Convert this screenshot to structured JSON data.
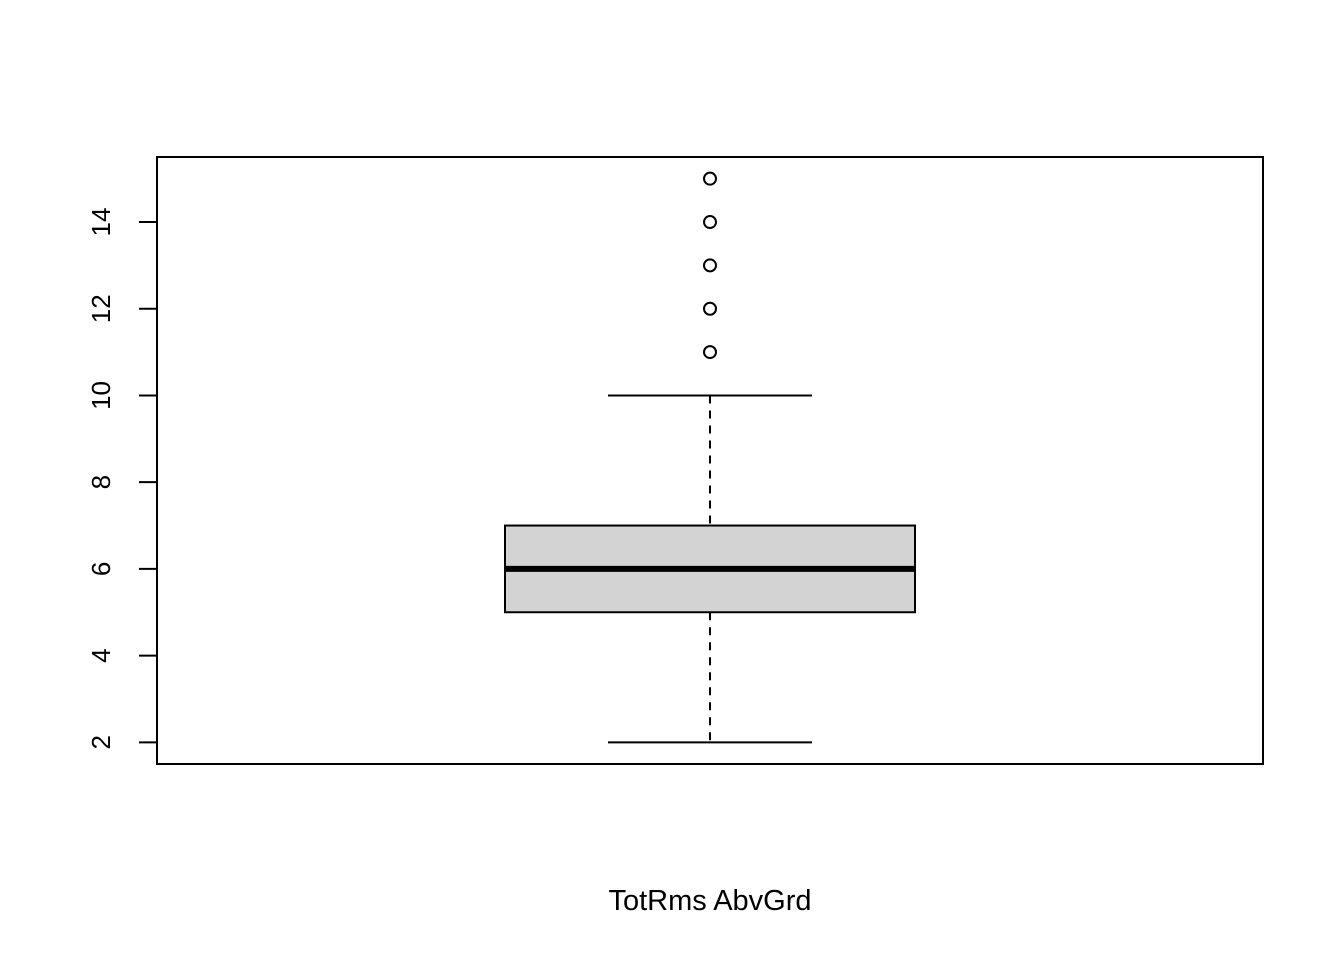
{
  "chart_data": {
    "type": "boxplot",
    "xlabel": "TotRms AbvGrd",
    "ylabel": "",
    "title": "",
    "ylim": [
      1.5,
      15.5
    ],
    "yticks": [
      2,
      4,
      6,
      8,
      10,
      12,
      14
    ],
    "ytick_labels": [
      "2",
      "4",
      "6",
      "8",
      "10",
      "12",
      "14"
    ],
    "series": [
      {
        "whisker_low": 2,
        "q1": 5,
        "median": 6,
        "q3": 7,
        "whisker_high": 10,
        "outliers": [
          11,
          12,
          13,
          14,
          15
        ]
      }
    ],
    "box_fill": "#d3d3d3",
    "line_color": "#000000",
    "grid": false,
    "legend": "none"
  }
}
